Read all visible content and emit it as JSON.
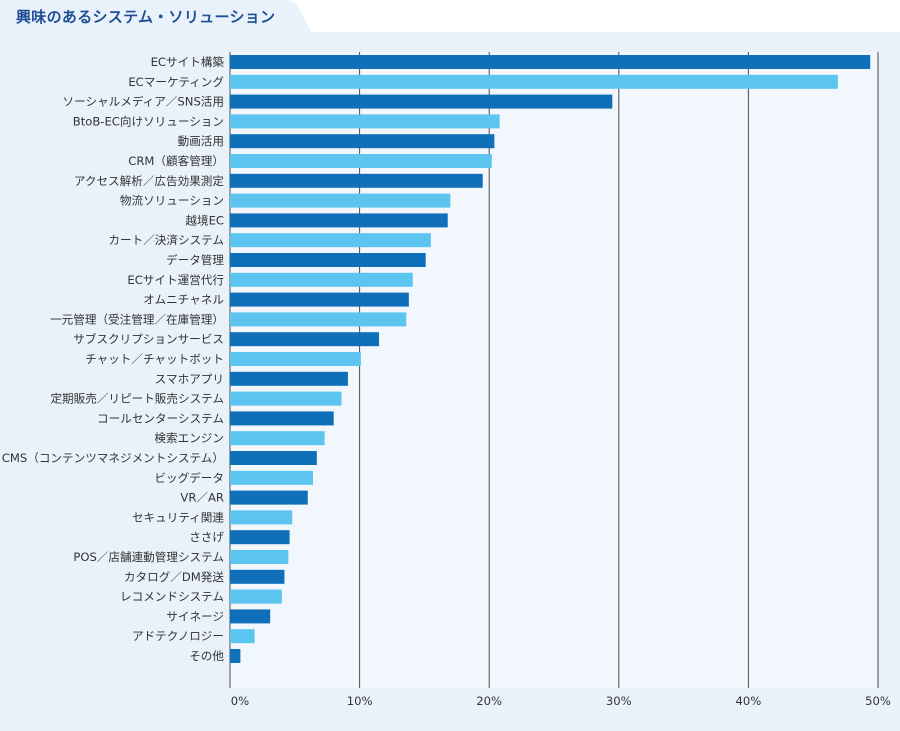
{
  "title": "興味のあるシステム・ソリューション",
  "colors": {
    "accent": "#1f4e96",
    "bar_dark": "#0f6fb8",
    "bar_light": "#5bc4ef",
    "plot_bg": "#f1f7fc",
    "panel_bg": "#e9f2fb",
    "grid": "#4d4d4d"
  },
  "chart_data": {
    "type": "bar",
    "orientation": "horizontal",
    "title": "興味のあるシステム・ソリューション",
    "xlabel": "",
    "ylabel": "",
    "xlim": [
      0,
      50
    ],
    "ticks": [
      0,
      10,
      20,
      30,
      40,
      50
    ],
    "tick_labels": [
      "0%",
      "10%",
      "20%",
      "30%",
      "40%",
      "50%"
    ],
    "grid": true,
    "categories": [
      "ECサイト構築",
      "ECマーケティング",
      "ソーシャルメディア／SNS活用",
      "BtoB-EC向けソリューション",
      "動画活用",
      "CRM（顧客管理）",
      "アクセス解析／広告効果測定",
      "物流ソリューション",
      "越境EC",
      "カート／決済システム",
      "データ管理",
      "ECサイト運営代行",
      "オムニチャネル",
      "一元管理（受注管理／在庫管理）",
      "サブスクリプションサービス",
      "チャット／チャットボット",
      "スマホアプリ",
      "定期販売／リピート販売システム",
      "コールセンターシステム",
      "検索エンジン",
      "CMS（コンテンツマネジメントシステム）",
      "ビッグデータ",
      "VR／AR",
      "セキュリティ関連",
      "ささげ",
      "POS／店舗連動管理システム",
      "カタログ／DM発送",
      "レコメンドシステム",
      "サイネージ",
      "アドテクノロジー",
      "その他"
    ],
    "values": [
      49.4,
      46.9,
      29.5,
      20.8,
      20.4,
      20.2,
      19.5,
      17.0,
      16.8,
      15.5,
      15.1,
      14.1,
      13.8,
      13.6,
      11.5,
      10.1,
      9.1,
      8.6,
      8.0,
      7.3,
      6.7,
      6.4,
      6.0,
      4.8,
      4.6,
      4.5,
      4.2,
      4.0,
      3.1,
      1.9,
      0.8
    ]
  }
}
